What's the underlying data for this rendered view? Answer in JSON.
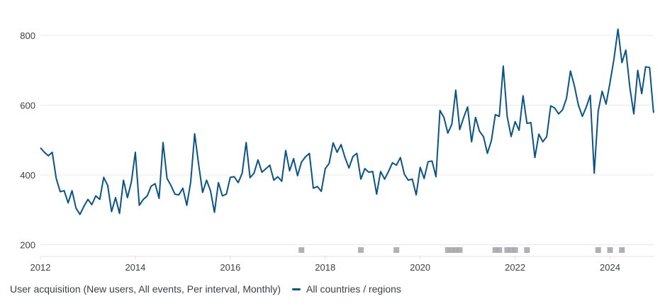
{
  "chart_data": {
    "type": "line",
    "title": "",
    "xlabel": "",
    "ylabel": "",
    "ylim": [
      170,
      830
    ],
    "y_ticks": [
      "200",
      "400",
      "600",
      "800"
    ],
    "y_tick_values": [
      200,
      400,
      600,
      800
    ],
    "x_ticks": [
      "2012",
      "2014",
      "2016",
      "2018",
      "2020",
      "2022",
      "2024"
    ],
    "x_start": "2012-01",
    "x_interval": "monthly",
    "grid": true,
    "legend_position": "bottom-left",
    "metric_label": "User acquisition (New users, All events, Per interval, Monthly)",
    "series": [
      {
        "name": "All countries / regions",
        "color": "#0b5384",
        "values": [
          478,
          465,
          455,
          465,
          390,
          352,
          355,
          320,
          355,
          305,
          287,
          310,
          330,
          315,
          340,
          330,
          393,
          370,
          295,
          335,
          290,
          385,
          335,
          380,
          465,
          313,
          330,
          340,
          368,
          375,
          333,
          493,
          390,
          370,
          345,
          343,
          362,
          313,
          380,
          518,
          430,
          350,
          385,
          355,
          293,
          378,
          340,
          345,
          393,
          395,
          378,
          405,
          493,
          392,
          405,
          443,
          408,
          418,
          428,
          385,
          395,
          382,
          470,
          412,
          447,
          398,
          437,
          452,
          462,
          362,
          367,
          353,
          418,
          433,
          492,
          465,
          487,
          450,
          420,
          453,
          462,
          388,
          418,
          408,
          410,
          345,
          410,
          388,
          410,
          435,
          428,
          450,
          402,
          385,
          388,
          343,
          422,
          390,
          438,
          440,
          395,
          585,
          565,
          520,
          545,
          643,
          530,
          565,
          595,
          495,
          565,
          525,
          510,
          462,
          498,
          573,
          568,
          712,
          568,
          510,
          553,
          528,
          627,
          548,
          550,
          450,
          517,
          495,
          510,
          598,
          592,
          575,
          587,
          620,
          698,
          655,
          600,
          568,
          595,
          628,
          405,
          583,
          640,
          603,
          665,
          733,
          818,
          722,
          758,
          652,
          575,
          700,
          633,
          710,
          708,
          578
        ]
      }
    ],
    "annotation_months": [
      "2017-07",
      "2018-10",
      "2019-07",
      "2020-08",
      "2020-09",
      "2020-10",
      "2020-11",
      "2021-08",
      "2021-09",
      "2021-11",
      "2021-12",
      "2022-01",
      "2022-04",
      "2023-10",
      "2024-01",
      "2024-04"
    ],
    "annotation_color": "#a7a9ac"
  }
}
